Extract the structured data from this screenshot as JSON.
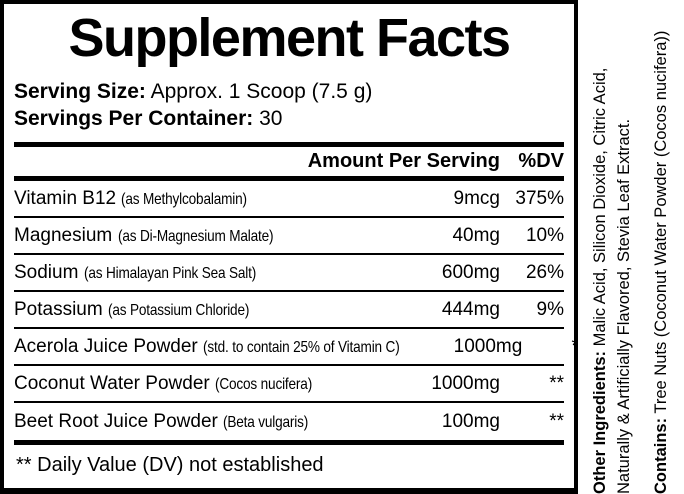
{
  "colors": {
    "ink": "#000000",
    "paper": "#ffffff"
  },
  "panel": {
    "title": "Supplement Facts",
    "serving_size_label": "Serving Size:",
    "serving_size_value": "Approx. 1 Scoop (7.5 g)",
    "servings_per_container_label": "Servings Per Container:",
    "servings_per_container_value": "30",
    "header": {
      "amount": "Amount Per Serving",
      "dv": "%DV"
    },
    "rows": [
      {
        "name": "Vitamin B12",
        "detail": "(as Methylcobalamin)",
        "amount": "9mcg",
        "dv": "375%"
      },
      {
        "name": "Magnesium",
        "detail": "(as Di-Magnesium Malate)",
        "amount": "40mg",
        "dv": "10%"
      },
      {
        "name": "Sodium",
        "detail": "(as Himalayan Pink Sea Salt)",
        "amount": "600mg",
        "dv": "26%"
      },
      {
        "name": "Potassium",
        "detail": "(as Potassium Chloride)",
        "amount": "444mg",
        "dv": "9%"
      },
      {
        "name": "Acerola Juice Powder",
        "detail": "(std. to contain 25% of Vitamin C)",
        "amount": "1000mg",
        "dv": "**"
      },
      {
        "name": "Coconut Water Powder",
        "detail": "(Cocos nucifera)",
        "amount": "1000mg",
        "dv": "**"
      },
      {
        "name": "Beet Root Juice Powder",
        "detail": "(Beta vulgaris)",
        "amount": "100mg",
        "dv": "**"
      }
    ],
    "footnote": "** Daily Value (DV) not established"
  },
  "side_text": {
    "other_ingredients_label": "Other Ingredients:",
    "other_ingredients_line1": "Malic Acid, Silicon Dioxide, Citric Acid,",
    "other_ingredients_line2": "Naturally & Artificially Flavored, Stevia Leaf Extract.",
    "contains_label": "Contains:",
    "contains_value": "Tree Nuts (Coconut Water Powder (Cocos nucifera))"
  }
}
